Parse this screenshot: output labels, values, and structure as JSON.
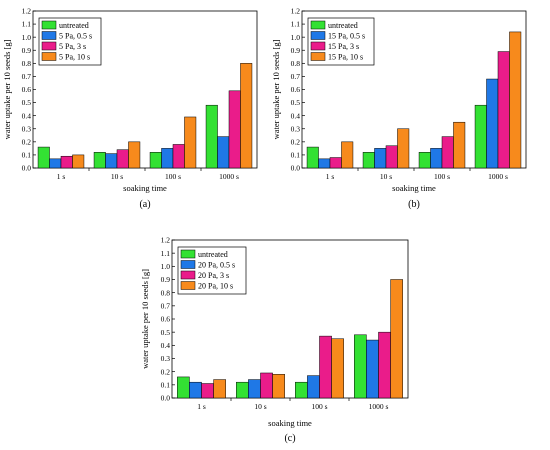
{
  "chart_data": [
    {
      "type": "bar",
      "panel_label": "(a)",
      "categories": [
        "1 s",
        "10 s",
        "100 s",
        "1000 s"
      ],
      "xlabel": "soaking time",
      "ylabel": "water uptake per 10 seeds [g]",
      "ylim": [
        0,
        1.2
      ],
      "yticks": [
        "0.0",
        "0.1",
        "0.2",
        "0.3",
        "0.4",
        "0.5",
        "0.6",
        "0.7",
        "0.8",
        "0.9",
        "1.0",
        "1.1",
        "1.2"
      ],
      "legend_position": "top-left",
      "grid": false,
      "series": [
        {
          "name": "untreated",
          "color": "#33e133",
          "values": [
            0.16,
            0.12,
            0.12,
            0.48
          ]
        },
        {
          "name": "5 Pa, 0.5 s",
          "color": "#1f78e6",
          "values": [
            0.07,
            0.11,
            0.15,
            0.24
          ]
        },
        {
          "name": "5 Pa, 3 s",
          "color": "#ea1c8a",
          "values": [
            0.09,
            0.14,
            0.18,
            0.59
          ]
        },
        {
          "name": "5 Pa, 10 s",
          "color": "#f78a1c",
          "values": [
            0.1,
            0.2,
            0.39,
            0.8
          ]
        }
      ]
    },
    {
      "type": "bar",
      "panel_label": "(b)",
      "categories": [
        "1 s",
        "10 s",
        "100 s",
        "1000 s"
      ],
      "xlabel": "soaking time",
      "ylabel": "water uptake per 10 seeds [g]",
      "ylim": [
        0,
        1.2
      ],
      "yticks": [
        "0.0",
        "0.1",
        "0.2",
        "0.3",
        "0.4",
        "0.5",
        "0.6",
        "0.7",
        "0.8",
        "0.9",
        "1.0",
        "1.1",
        "1.2"
      ],
      "legend_position": "top-left",
      "grid": false,
      "series": [
        {
          "name": "untreated",
          "color": "#33e133",
          "values": [
            0.16,
            0.12,
            0.12,
            0.48
          ]
        },
        {
          "name": "15 Pa, 0.5 s",
          "color": "#1f78e6",
          "values": [
            0.07,
            0.15,
            0.15,
            0.68
          ]
        },
        {
          "name": "15 Pa, 3 s",
          "color": "#ea1c8a",
          "values": [
            0.08,
            0.17,
            0.24,
            0.89
          ]
        },
        {
          "name": "15 Pa, 10 s",
          "color": "#f78a1c",
          "values": [
            0.2,
            0.3,
            0.35,
            1.04
          ]
        }
      ]
    },
    {
      "type": "bar",
      "panel_label": "(c)",
      "categories": [
        "1 s",
        "10 s",
        "100 s",
        "1000 s"
      ],
      "xlabel": "soaking time",
      "ylabel": "water uptake per 10 seeds [g]",
      "ylim": [
        0,
        1.2
      ],
      "yticks": [
        "0.0",
        "0.1",
        "0.2",
        "0.3",
        "0.4",
        "0.5",
        "0.6",
        "0.7",
        "0.8",
        "0.9",
        "1.0",
        "1.1",
        "1.2"
      ],
      "legend_position": "top-left",
      "grid": false,
      "series": [
        {
          "name": "untreated",
          "color": "#33e133",
          "values": [
            0.16,
            0.12,
            0.12,
            0.48
          ]
        },
        {
          "name": "20 Pa, 0.5 s",
          "color": "#1f78e6",
          "values": [
            0.12,
            0.14,
            0.17,
            0.44
          ]
        },
        {
          "name": "20 Pa, 3 s",
          "color": "#ea1c8a",
          "values": [
            0.11,
            0.19,
            0.47,
            0.5
          ]
        },
        {
          "name": "20 Pa, 10 s",
          "color": "#f78a1c",
          "values": [
            0.14,
            0.18,
            0.45,
            0.9
          ]
        }
      ]
    }
  ]
}
